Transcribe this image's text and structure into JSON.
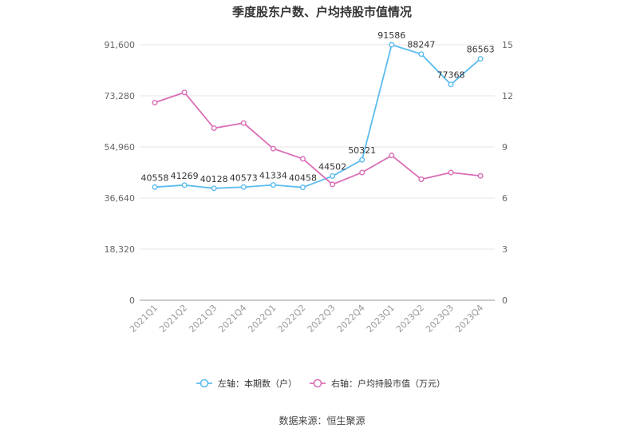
{
  "title": "季度股东户数、户均持股市值情况",
  "source": "数据来源：恒生聚源",
  "chart_data": {
    "type": "line",
    "categories": [
      "2021Q1",
      "2021Q2",
      "2021Q3",
      "2021Q4",
      "2022Q1",
      "2022Q2",
      "2022Q3",
      "2022Q4",
      "2023Q1",
      "2023Q2",
      "2023Q3",
      "2023Q4"
    ],
    "y_left": {
      "ticks": [
        "0",
        "18,320",
        "36,640",
        "54,960",
        "73,280",
        "91,600"
      ],
      "ylim": [
        0,
        91600
      ]
    },
    "y_right": {
      "ticks": [
        "0",
        "3",
        "6",
        "9",
        "12",
        "15"
      ],
      "ylim": [
        0,
        15
      ]
    },
    "series": [
      {
        "name": "左轴：本期数（户）",
        "axis": "left",
        "color": "#5bbcee",
        "show_labels": true,
        "values": [
          40558,
          41269,
          40128,
          40573,
          41334,
          40458,
          44502,
          50321,
          91586,
          88247,
          77368,
          86563
        ]
      },
      {
        "name": "右轴：户均持股市值（万元）",
        "axis": "right",
        "color": "#d96eb6",
        "show_labels": false,
        "values": [
          11.6,
          12.2,
          10.1,
          10.4,
          8.9,
          8.3,
          6.8,
          7.5,
          8.5,
          7.1,
          7.5,
          7.3
        ]
      }
    ],
    "grid": true,
    "legend_position": "bottom"
  }
}
